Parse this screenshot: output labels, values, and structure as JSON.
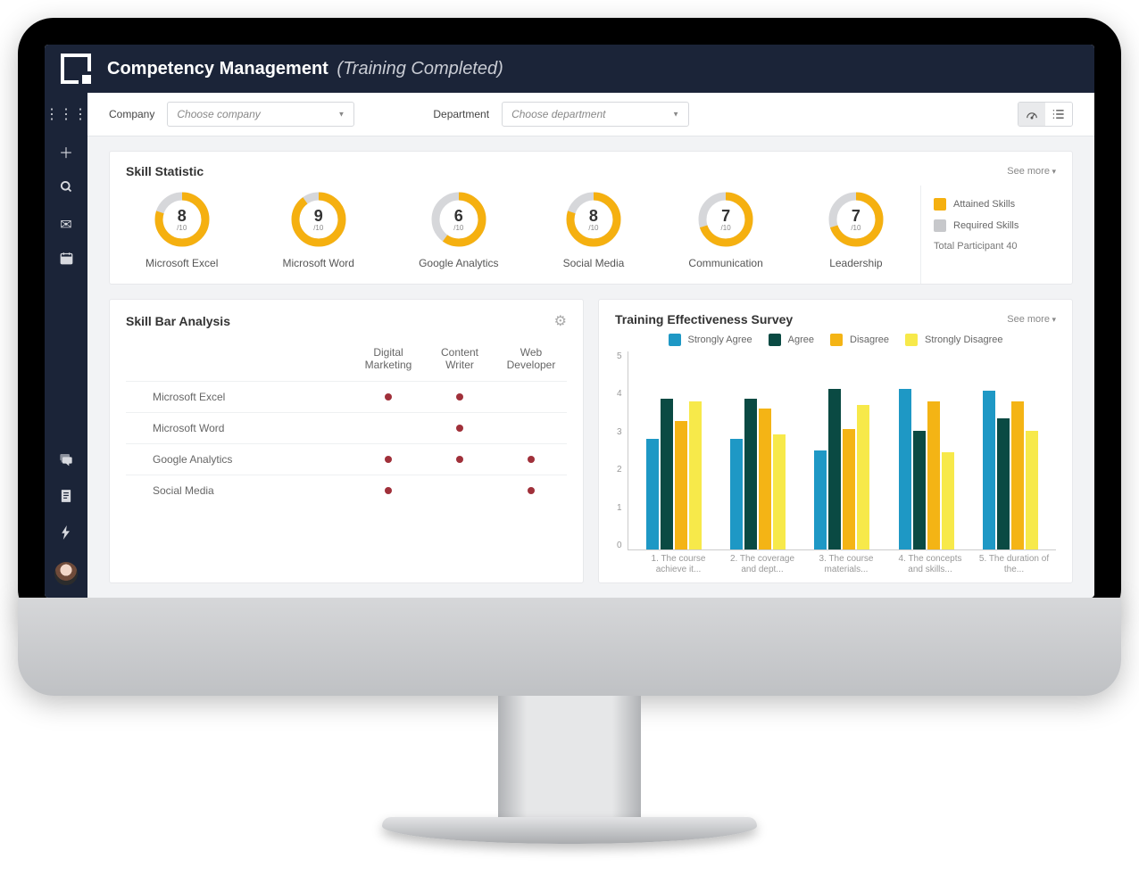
{
  "header": {
    "title": "Competency Management",
    "subtitle": "(Training Completed)"
  },
  "filters": {
    "company_label": "Company",
    "company_placeholder": "Choose company",
    "department_label": "Department",
    "department_placeholder": "Choose department"
  },
  "colors": {
    "accent_dark": "#1b2438",
    "gauge_fg": "#f5b010",
    "gauge_bg": "#d6d7da",
    "attained": "#f5b010",
    "required": "#c7c8cb",
    "dot": "#a0303a",
    "survey": {
      "strongly_agree": "#1e98c5",
      "agree": "#0a4a43",
      "disagree": "#f4b415",
      "strongly_disagree": "#f7e94a"
    }
  },
  "skillstat": {
    "title": "Skill Statistic",
    "seemore": "See more",
    "max": 10,
    "items": [
      {
        "value": 8,
        "label": "Microsoft Excel"
      },
      {
        "value": 9,
        "label": "Microsoft Word"
      },
      {
        "value": 6,
        "label": "Google Analytics"
      },
      {
        "value": 8,
        "label": "Social Media"
      },
      {
        "value": 7,
        "label": "Communication"
      },
      {
        "value": 7,
        "label": "Leadership"
      }
    ],
    "legend": {
      "attained": "Attained Skills",
      "required": "Required Skills",
      "total": "Total Participant 40"
    }
  },
  "sba": {
    "title": "Skill Bar Analysis",
    "cols": [
      "Digital Marketing",
      "Content Writer",
      "Web Developer"
    ],
    "rows": [
      {
        "label": "Microsoft Excel",
        "dots": [
          1,
          1,
          0
        ]
      },
      {
        "label": "Microsoft Word",
        "dots": [
          0,
          1,
          0
        ]
      },
      {
        "label": "Google Analytics",
        "dots": [
          1,
          1,
          1
        ]
      },
      {
        "label": "Social Media",
        "dots": [
          1,
          0,
          1
        ]
      }
    ]
  },
  "survey": {
    "title": "Training Effectiveness Survey",
    "seemore": "See more",
    "legend": [
      "Strongly Agree",
      "Agree",
      "Disagree",
      "Strongly Disagree"
    ],
    "ylim": [
      0,
      5
    ],
    "yticks": [
      5,
      4,
      3,
      2,
      1,
      0
    ],
    "groups": [
      {
        "label": "1. The course achieve it...",
        "v": [
          2.8,
          3.8,
          3.25,
          3.75
        ]
      },
      {
        "label": "2. The coverage and dept...",
        "v": [
          2.8,
          3.8,
          3.55,
          2.9
        ]
      },
      {
        "label": "3. The course materials...",
        "v": [
          2.5,
          4.05,
          3.05,
          3.65
        ]
      },
      {
        "label": "4. The concepts and skills...",
        "v": [
          4.05,
          3.0,
          3.75,
          2.45
        ]
      },
      {
        "label": "5. The duration of the...",
        "v": [
          4.0,
          3.3,
          3.75,
          3.0
        ]
      }
    ]
  }
}
